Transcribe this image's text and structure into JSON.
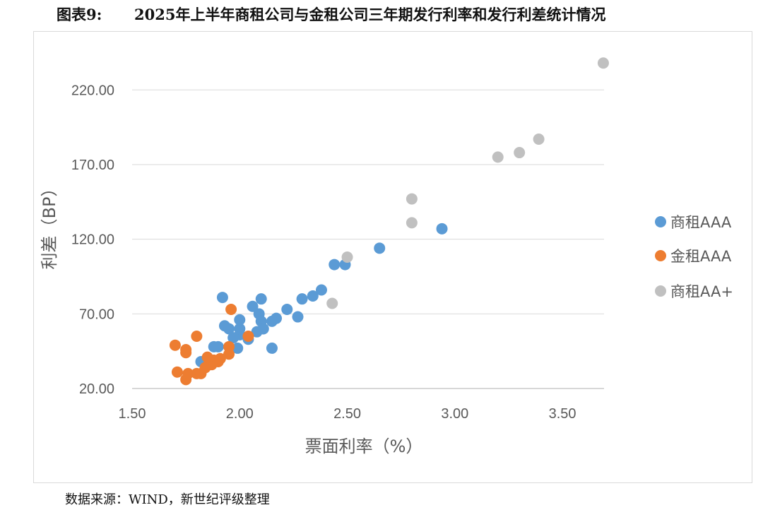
{
  "figure": {
    "number": "图表9:",
    "title": "2025年上半年商租公司与金租公司三年期发行利率和发行利差统计情况",
    "source": "数据来源：WIND，新世纪评级整理"
  },
  "chart_data": {
    "type": "scatter",
    "xlabel": "票面利率（%）",
    "ylabel": "利差（BP）",
    "xlim": [
      1.5,
      3.7
    ],
    "ylim": [
      20,
      240
    ],
    "x_ticks": [
      1.5,
      2.0,
      2.5,
      3.0,
      3.5
    ],
    "x_tick_labels": [
      "1.50",
      "2.00",
      "2.50",
      "3.00",
      "3.50"
    ],
    "y_ticks": [
      20,
      70,
      120,
      170,
      220
    ],
    "y_tick_labels": [
      "20.00",
      "70.00",
      "120.00",
      "170.00",
      "220.00"
    ],
    "grid": "horizontal",
    "legend_position": "right",
    "series": [
      {
        "name": "商租AAA",
        "color": "#5b9bd5",
        "points": [
          [
            1.82,
            38
          ],
          [
            1.88,
            48
          ],
          [
            1.9,
            48
          ],
          [
            1.92,
            81
          ],
          [
            1.93,
            62
          ],
          [
            1.95,
            60
          ],
          [
            1.97,
            54
          ],
          [
            1.99,
            47
          ],
          [
            2.0,
            56
          ],
          [
            2.0,
            60
          ],
          [
            2.0,
            66
          ],
          [
            2.04,
            53
          ],
          [
            2.06,
            75
          ],
          [
            2.08,
            58
          ],
          [
            2.09,
            70
          ],
          [
            2.1,
            80
          ],
          [
            2.1,
            65
          ],
          [
            2.11,
            60
          ],
          [
            2.15,
            47
          ],
          [
            2.15,
            65
          ],
          [
            2.17,
            67
          ],
          [
            2.22,
            73
          ],
          [
            2.27,
            68
          ],
          [
            2.29,
            80
          ],
          [
            2.34,
            82
          ],
          [
            2.38,
            86
          ],
          [
            2.44,
            103
          ],
          [
            2.49,
            103
          ],
          [
            2.65,
            114
          ],
          [
            2.94,
            127
          ]
        ]
      },
      {
        "name": "金租AAA",
        "color": "#ed7d31",
        "points": [
          [
            1.7,
            49
          ],
          [
            1.71,
            31
          ],
          [
            1.75,
            46
          ],
          [
            1.75,
            44
          ],
          [
            1.75,
            26
          ],
          [
            1.76,
            30
          ],
          [
            1.8,
            30
          ],
          [
            1.8,
            55
          ],
          [
            1.82,
            30
          ],
          [
            1.84,
            34
          ],
          [
            1.85,
            41
          ],
          [
            1.86,
            38
          ],
          [
            1.87,
            36
          ],
          [
            1.88,
            39
          ],
          [
            1.9,
            38
          ],
          [
            1.91,
            40
          ],
          [
            1.95,
            48
          ],
          [
            1.95,
            43
          ],
          [
            1.96,
            73
          ],
          [
            2.04,
            55
          ]
        ]
      },
      {
        "name": "商租AA+",
        "color": "#c0c0c0",
        "points": [
          [
            2.43,
            77
          ],
          [
            2.5,
            108
          ],
          [
            2.8,
            147
          ],
          [
            2.8,
            131
          ],
          [
            3.2,
            175
          ],
          [
            3.3,
            178
          ],
          [
            3.39,
            187
          ],
          [
            3.69,
            238
          ]
        ]
      }
    ]
  }
}
